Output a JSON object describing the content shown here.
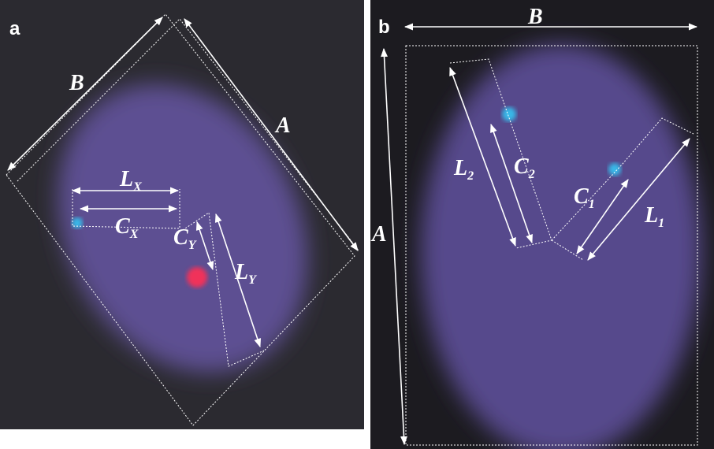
{
  "panels": [
    {
      "label": "a",
      "annotations": [
        {
          "text": "B"
        },
        {
          "text": "A"
        },
        {
          "text": "L",
          "sub": "X"
        },
        {
          "text": "C",
          "sub": "X"
        },
        {
          "text": "C",
          "sub": "Y"
        },
        {
          "text": "L",
          "sub": "Y"
        }
      ]
    },
    {
      "label": "b",
      "annotations": [
        {
          "text": "B"
        },
        {
          "text": "A"
        },
        {
          "text": "L",
          "sub": "2"
        },
        {
          "text": "C",
          "sub": "2"
        },
        {
          "text": "C",
          "sub": "1"
        },
        {
          "text": "L",
          "sub": "1"
        }
      ]
    }
  ]
}
